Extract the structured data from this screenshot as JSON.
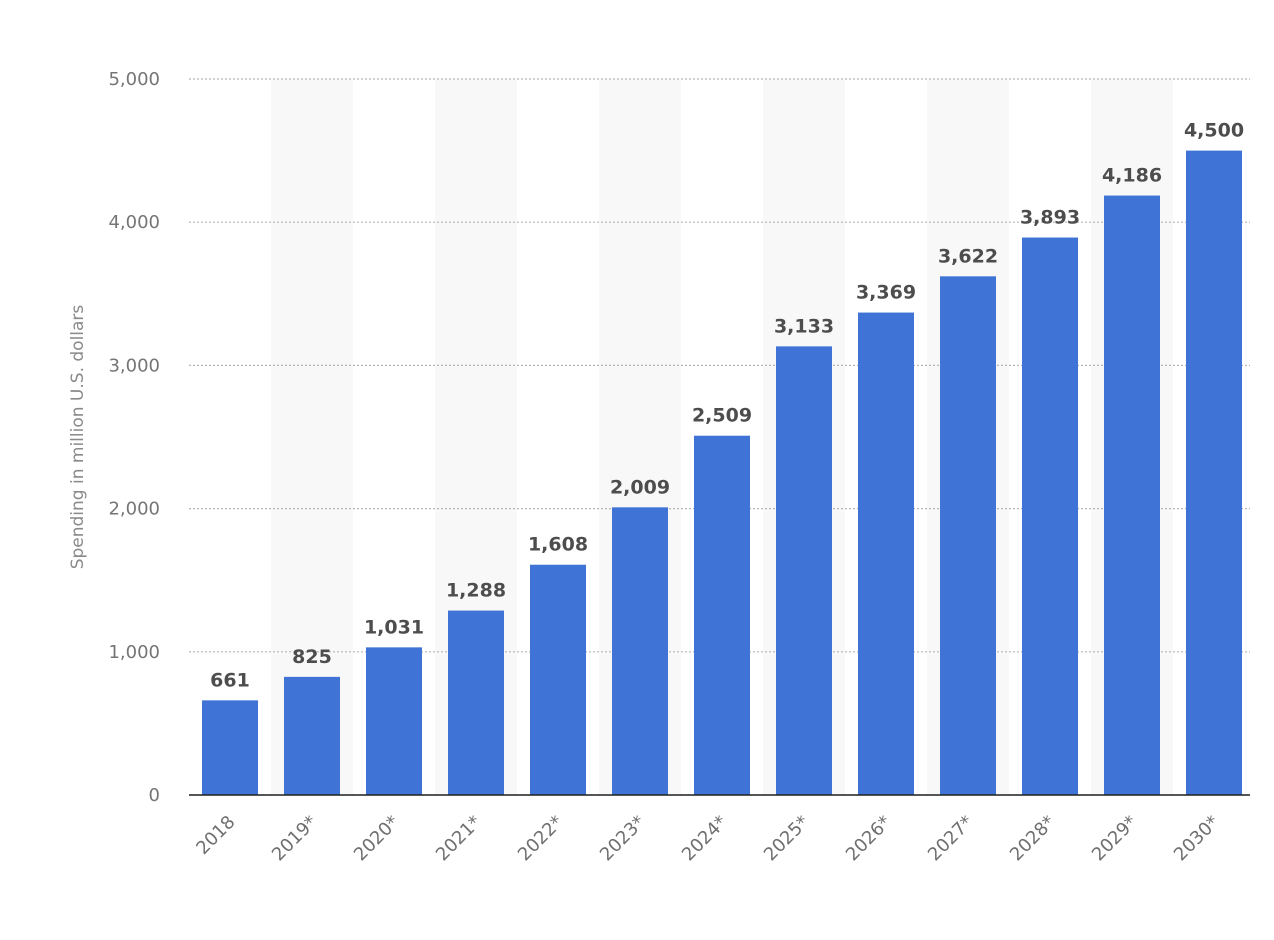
{
  "chart_data": {
    "type": "bar",
    "title": "",
    "xlabel": "",
    "ylabel": "Spending in million U.S. dollars",
    "categories": [
      "2018",
      "2019*",
      "2020*",
      "2021*",
      "2022*",
      "2023*",
      "2024*",
      "2025*",
      "2026*",
      "2027*",
      "2028*",
      "2029*",
      "2030*"
    ],
    "values": [
      661,
      825,
      1031,
      1288,
      1608,
      2009,
      2509,
      3133,
      3369,
      3622,
      3893,
      4186,
      4500
    ],
    "data_labels": [
      "661",
      "825",
      "1,031",
      "1,288",
      "1,608",
      "2,009",
      "2,509",
      "3,133",
      "3,369",
      "3,622",
      "3,893",
      "4,186",
      "4,500"
    ],
    "ylim": [
      0,
      5000
    ],
    "yticks": [
      0,
      1000,
      2000,
      3000,
      4000,
      5000
    ],
    "ytick_labels": [
      "0",
      "1,000",
      "2,000",
      "3,000",
      "4,000",
      "5,000"
    ],
    "grid": true,
    "bar_color": "#3f74d6",
    "alt_band_color": "#f8f8f8",
    "grid_color": "#b4b4b4",
    "axis_color": "#1f1f1f"
  }
}
